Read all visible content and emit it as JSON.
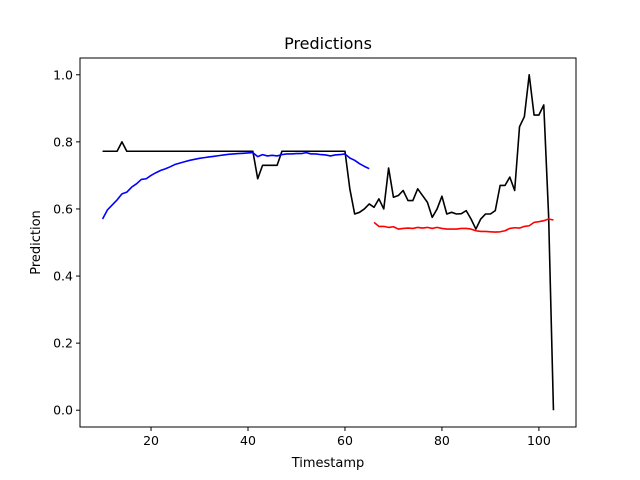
{
  "chart_data": {
    "type": "line",
    "title": "Predictions",
    "xlabel": "Timestamp",
    "ylabel": "Prediction",
    "xlim": [
      5.35,
      107.65
    ],
    "ylim": [
      -0.05,
      1.05
    ],
    "xticks": [
      20,
      40,
      60,
      80,
      100
    ],
    "yticks": [
      0.0,
      0.2,
      0.4,
      0.6,
      0.8,
      1.0
    ],
    "grid": false,
    "legend": "none",
    "series": [
      {
        "color": "#000000",
        "x": [
          10,
          11,
          12,
          13,
          14,
          15,
          16,
          17,
          18,
          19,
          20,
          21,
          22,
          23,
          24,
          25,
          26,
          27,
          28,
          29,
          30,
          31,
          32,
          33,
          34,
          35,
          36,
          37,
          38,
          39,
          40,
          41,
          42,
          43,
          44,
          45,
          46,
          47,
          48,
          49,
          50,
          51,
          52,
          53,
          54,
          55,
          56,
          57,
          58,
          59,
          60,
          61,
          62,
          63,
          64,
          65,
          66,
          67,
          68,
          69,
          70,
          71,
          72,
          73,
          74,
          75,
          76,
          77,
          78,
          79,
          80,
          81,
          82,
          83,
          84,
          85,
          86,
          87,
          88,
          89,
          90,
          91,
          92,
          93,
          94,
          95,
          96,
          97,
          98,
          99,
          100,
          101,
          102,
          103
        ],
        "y": [
          0.772,
          0.772,
          0.772,
          0.772,
          0.8,
          0.772,
          0.772,
          0.772,
          0.772,
          0.772,
          0.772,
          0.772,
          0.772,
          0.772,
          0.772,
          0.772,
          0.772,
          0.772,
          0.772,
          0.772,
          0.772,
          0.772,
          0.772,
          0.772,
          0.772,
          0.772,
          0.772,
          0.772,
          0.772,
          0.772,
          0.772,
          0.772,
          0.69,
          0.73,
          0.73,
          0.73,
          0.73,
          0.772,
          0.772,
          0.772,
          0.772,
          0.772,
          0.772,
          0.772,
          0.772,
          0.772,
          0.772,
          0.772,
          0.772,
          0.772,
          0.772,
          0.66,
          0.585,
          0.59,
          0.6,
          0.615,
          0.605,
          0.63,
          0.6,
          0.722,
          0.635,
          0.64,
          0.655,
          0.625,
          0.625,
          0.66,
          0.64,
          0.62,
          0.575,
          0.6,
          0.638,
          0.585,
          0.59,
          0.585,
          0.586,
          0.595,
          0.57,
          0.54,
          0.57,
          0.585,
          0.585,
          0.595,
          0.67,
          0.67,
          0.695,
          0.655,
          0.845,
          0.875,
          1.0,
          0.88,
          0.88,
          0.91,
          0.58,
          0.0
        ]
      },
      {
        "color": "#0000ff",
        "x": [
          10,
          11,
          12,
          13,
          14,
          15,
          16,
          17,
          18,
          19,
          20,
          21,
          22,
          23,
          24,
          25,
          26,
          27,
          28,
          29,
          30,
          31,
          32,
          33,
          34,
          35,
          36,
          37,
          38,
          39,
          40,
          41,
          42,
          43,
          44,
          45,
          46,
          47,
          48,
          49,
          50,
          51,
          52,
          53,
          54,
          55,
          56,
          57,
          58,
          59,
          60,
          61,
          62,
          63,
          64,
          65
        ],
        "y": [
          0.57,
          0.597,
          0.612,
          0.627,
          0.645,
          0.65,
          0.665,
          0.675,
          0.688,
          0.69,
          0.7,
          0.708,
          0.715,
          0.72,
          0.726,
          0.733,
          0.737,
          0.741,
          0.745,
          0.748,
          0.751,
          0.753,
          0.755,
          0.757,
          0.759,
          0.761,
          0.763,
          0.764,
          0.765,
          0.766,
          0.767,
          0.768,
          0.756,
          0.762,
          0.758,
          0.76,
          0.758,
          0.762,
          0.764,
          0.764,
          0.765,
          0.765,
          0.768,
          0.764,
          0.764,
          0.762,
          0.761,
          0.758,
          0.761,
          0.762,
          0.764,
          0.752,
          0.745,
          0.735,
          0.727,
          0.72
        ]
      },
      {
        "color": "#ff0000",
        "x": [
          66,
          67,
          68,
          69,
          70,
          71,
          72,
          73,
          74,
          75,
          76,
          77,
          78,
          79,
          80,
          81,
          82,
          83,
          84,
          85,
          86,
          87,
          88,
          89,
          90,
          91,
          92,
          93,
          94,
          95,
          96,
          97,
          98,
          99,
          100,
          101,
          102,
          103
        ],
        "y": [
          0.56,
          0.548,
          0.548,
          0.545,
          0.547,
          0.54,
          0.542,
          0.543,
          0.542,
          0.545,
          0.543,
          0.545,
          0.542,
          0.545,
          0.542,
          0.54,
          0.54,
          0.54,
          0.542,
          0.542,
          0.54,
          0.535,
          0.533,
          0.533,
          0.532,
          0.531,
          0.532,
          0.535,
          0.542,
          0.544,
          0.543,
          0.548,
          0.55,
          0.56,
          0.562,
          0.565,
          0.57,
          0.567
        ]
      }
    ]
  }
}
